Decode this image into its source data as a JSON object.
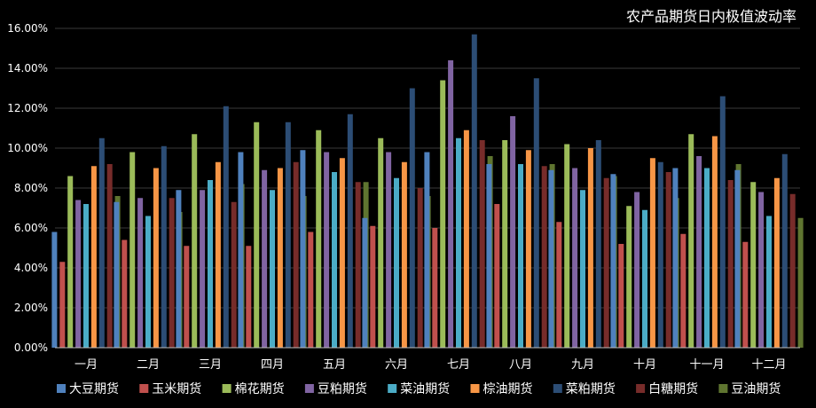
{
  "chart_data": {
    "type": "bar",
    "title": "农产品期货日内极值波动率",
    "categories": [
      "一月",
      "二月",
      "三月",
      "四月",
      "五月",
      "六月",
      "七月",
      "八月",
      "九月",
      "十月",
      "十一月",
      "十二月"
    ],
    "ylim": [
      0,
      16
    ],
    "yticks": [
      "0.00%",
      "2.00%",
      "4.00%",
      "6.00%",
      "8.00%",
      "10.00%",
      "12.00%",
      "14.00%",
      "16.00%"
    ],
    "grid": true,
    "legend_position": "bottom",
    "series": [
      {
        "name": "大豆期货",
        "color": "#4F81BD",
        "values": [
          5.8,
          7.3,
          7.9,
          9.8,
          9.9,
          6.5,
          9.8,
          9.2,
          8.9,
          8.7,
          9.0,
          8.9
        ]
      },
      {
        "name": "玉米期货",
        "color": "#C0504D",
        "values": [
          4.3,
          5.4,
          5.1,
          5.1,
          5.8,
          6.1,
          6.0,
          7.2,
          6.3,
          5.2,
          5.7,
          5.3
        ]
      },
      {
        "name": "棉花期货",
        "color": "#9BBB59",
        "values": [
          8.6,
          9.8,
          10.7,
          11.3,
          10.9,
          10.5,
          13.4,
          10.4,
          10.2,
          7.1,
          10.7,
          8.3
        ]
      },
      {
        "name": "豆粕期货",
        "color": "#8064A2",
        "values": [
          7.4,
          7.5,
          7.9,
          8.9,
          9.8,
          9.8,
          14.4,
          11.6,
          9.0,
          7.8,
          9.6,
          7.8
        ]
      },
      {
        "name": "菜油期货",
        "color": "#4BACC6",
        "values": [
          7.2,
          6.6,
          8.4,
          7.9,
          8.8,
          8.5,
          10.5,
          9.2,
          7.9,
          6.9,
          9.0,
          6.6
        ]
      },
      {
        "name": "棕油期货",
        "color": "#F79646",
        "values": [
          9.1,
          9.0,
          9.3,
          9.0,
          9.5,
          9.3,
          10.9,
          9.9,
          10.0,
          9.5,
          10.6,
          8.5
        ]
      },
      {
        "name": "菜粕期货",
        "color": "#2C4D75",
        "values": [
          10.5,
          10.1,
          12.1,
          11.3,
          11.7,
          13.0,
          15.7,
          13.5,
          10.4,
          9.3,
          12.6,
          9.7
        ]
      },
      {
        "name": "白糖期货",
        "color": "#772C2A",
        "values": [
          9.2,
          7.5,
          7.3,
          9.3,
          8.3,
          8.0,
          10.4,
          9.1,
          8.5,
          8.8,
          8.4,
          7.7
        ]
      },
      {
        "name": "豆油期货",
        "color": "#5F7530",
        "values": [
          7.6,
          6.8,
          8.2,
          7.6,
          8.3,
          7.6,
          9.6,
          9.2,
          8.6,
          7.5,
          9.2,
          6.5
        ]
      }
    ]
  }
}
